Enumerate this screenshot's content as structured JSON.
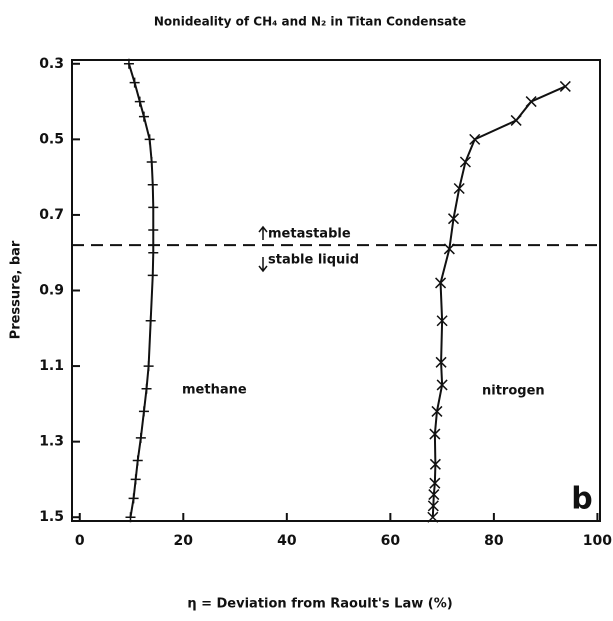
{
  "chart_data": {
    "type": "line",
    "title": "Nonideality of CH₄ and N₂ in Titan Condensate",
    "x_label": "η = Deviation from Raoult's Law (%)",
    "y_label": "Pressure, bar",
    "xlim": [
      -1.5,
      100.5
    ],
    "xticks": [
      0,
      20,
      40,
      60,
      80,
      100
    ],
    "ylim": [
      0.29,
      1.51
    ],
    "y_inverted": true,
    "yticks": [
      0.3,
      0.5,
      0.7,
      0.9,
      1.1,
      1.3,
      1.5
    ],
    "series": [
      {
        "name": "methane",
        "color": "#111111",
        "marker": "+",
        "x": [
          9.5,
          10.6,
          11.6,
          12.4,
          13.5,
          13.9,
          14.1,
          14.2,
          14.2,
          14.2,
          14.1,
          13.7,
          13.3,
          12.9,
          12.4,
          11.8,
          11.2,
          10.8,
          10.4,
          9.8
        ],
        "values": [
          0.3,
          0.35,
          0.4,
          0.44,
          0.5,
          0.56,
          0.62,
          0.68,
          0.74,
          0.8,
          0.86,
          0.98,
          1.1,
          1.16,
          1.22,
          1.29,
          1.35,
          1.4,
          1.45,
          1.5
        ]
      },
      {
        "name": "nitrogen",
        "color": "#111111",
        "marker": "x",
        "x": [
          93.8,
          87.2,
          84.3,
          76.3,
          74.5,
          73.3,
          72.2,
          71.4,
          69.7,
          70.0,
          69.8,
          70.0,
          69.0,
          68.6,
          68.7,
          68.6,
          68.4,
          68.3,
          68.2
        ],
        "values": [
          0.36,
          0.4,
          0.45,
          0.5,
          0.56,
          0.63,
          0.71,
          0.79,
          0.88,
          0.98,
          1.09,
          1.15,
          1.22,
          1.28,
          1.36,
          1.41,
          1.44,
          1.47,
          1.5
        ]
      }
    ],
    "reference_line": {
      "y": 0.78,
      "label_above": "metastable",
      "label_below": "stable liquid"
    },
    "panel_label": "b"
  }
}
